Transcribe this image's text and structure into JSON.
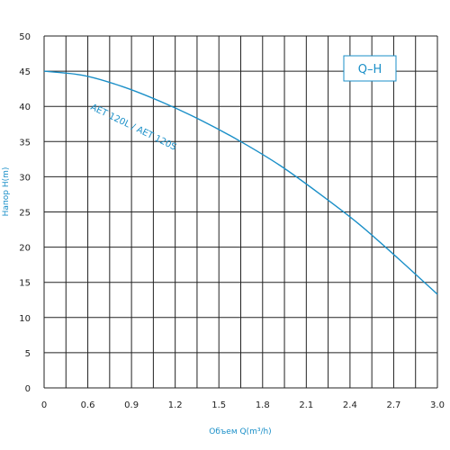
{
  "chart_data": {
    "type": "line",
    "title": "",
    "badge": "Q–H",
    "xlabel": "Объем Q(m³/h)",
    "ylabel": "Напор H(m)",
    "xlim": [
      0,
      3.0
    ],
    "ylim": [
      0,
      50
    ],
    "grid": true,
    "x_ticks": [
      "0",
      "0.6",
      "0.9",
      "1.2",
      "1.5",
      "1.8",
      "2.1",
      "2.4",
      "2.7",
      "3.0"
    ],
    "y_ticks": [
      "0",
      "5",
      "10",
      "15",
      "20",
      "25",
      "30",
      "35",
      "40",
      "45",
      "50"
    ],
    "series": [
      {
        "name": "AET 120L / AET 120S",
        "color": "#1a8fc8",
        "x": [
          0,
          0.3,
          0.6,
          0.9,
          1.2,
          1.5,
          1.8,
          2.1,
          2.4,
          2.7,
          3.0
        ],
        "y": [
          45.0,
          44.4,
          42.8,
          40.6,
          38.0,
          35.0,
          31.6,
          27.6,
          23.3,
          18.4,
          13.3
        ]
      }
    ]
  },
  "colors": {
    "accent": "#1a8fc8",
    "grid": "#222222"
  }
}
